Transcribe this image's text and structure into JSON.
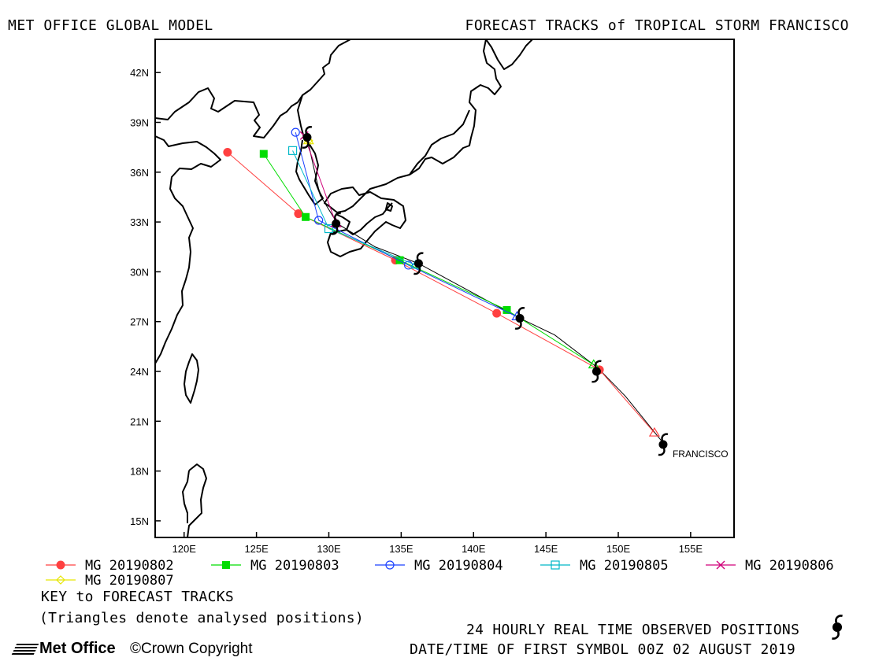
{
  "header": {
    "left_title": "MET OFFICE GLOBAL MODEL",
    "right_title": "FORECAST TRACKS of TROPICAL STORM FRANCISCO"
  },
  "chart_data": {
    "type": "line",
    "title": "FORECAST TRACKS of TROPICAL STORM FRANCISCO",
    "xlim": [
      118,
      158
    ],
    "ylim": [
      14,
      44
    ],
    "x_ticks": [
      120,
      125,
      130,
      135,
      140,
      145,
      150,
      155
    ],
    "x_tick_labels": [
      "120E",
      "125E",
      "130E",
      "135E",
      "140E",
      "145E",
      "150E",
      "155E"
    ],
    "y_ticks": [
      15,
      18,
      21,
      24,
      27,
      30,
      33,
      36,
      39,
      42
    ],
    "y_tick_labels": [
      "15N",
      "18N",
      "21N",
      "24N",
      "27N",
      "30N",
      "33N",
      "36N",
      "39N",
      "42N"
    ],
    "storm_label": "FRANCISCO",
    "observed_positions": [
      {
        "lon": 153.1,
        "lat": 19.6
      },
      {
        "lon": 148.5,
        "lat": 24.0
      },
      {
        "lon": 143.2,
        "lat": 27.2
      },
      {
        "lon": 136.2,
        "lat": 30.5
      },
      {
        "lon": 130.5,
        "lat": 32.9
      },
      {
        "lon": 128.5,
        "lat": 38.1
      }
    ],
    "observed_track": [
      {
        "lon": 153.0,
        "lat": 19.8
      },
      {
        "lon": 150.5,
        "lat": 22.5
      },
      {
        "lon": 148.6,
        "lat": 24.2
      },
      {
        "lon": 145.6,
        "lat": 26.2
      },
      {
        "lon": 143.2,
        "lat": 27.2
      },
      {
        "lon": 139.8,
        "lat": 28.8
      },
      {
        "lon": 136.2,
        "lat": 30.5
      },
      {
        "lon": 133.2,
        "lat": 31.5
      },
      {
        "lon": 130.6,
        "lat": 32.9
      },
      {
        "lon": 129.4,
        "lat": 34.6
      },
      {
        "lon": 128.9,
        "lat": 36.5
      },
      {
        "lon": 128.5,
        "lat": 38.1
      }
    ],
    "series": [
      {
        "name": "MG 20190802",
        "color": "#ff4040",
        "marker": "filled-circle",
        "points": [
          {
            "lon": 152.5,
            "lat": 20.3
          },
          {
            "lon": 148.7,
            "lat": 24.1
          },
          {
            "lon": 141.6,
            "lat": 27.5
          },
          {
            "lon": 134.6,
            "lat": 30.7
          },
          {
            "lon": 127.9,
            "lat": 33.5
          },
          {
            "lon": 123.0,
            "lat": 37.2
          }
        ]
      },
      {
        "name": "MG 20190803",
        "color": "#00dd00",
        "marker": "filled-square",
        "points": [
          {
            "lon": 148.3,
            "lat": 24.4
          },
          {
            "lon": 142.3,
            "lat": 27.7
          },
          {
            "lon": 134.9,
            "lat": 30.7
          },
          {
            "lon": 128.4,
            "lat": 33.3
          },
          {
            "lon": 125.5,
            "lat": 37.1
          }
        ]
      },
      {
        "name": "MG 20190804",
        "color": "#1a40ff",
        "marker": "open-circle",
        "points": [
          {
            "lon": 143.0,
            "lat": 27.3
          },
          {
            "lon": 135.5,
            "lat": 30.4
          },
          {
            "lon": 129.3,
            "lat": 33.1
          },
          {
            "lon": 127.7,
            "lat": 38.4
          }
        ]
      },
      {
        "name": "MG 20190805",
        "color": "#00b8c8",
        "marker": "open-square",
        "points": [
          {
            "lon": 136.0,
            "lat": 30.4
          },
          {
            "lon": 130.0,
            "lat": 32.6
          },
          {
            "lon": 127.5,
            "lat": 37.3
          }
        ]
      },
      {
        "name": "MG 20190806",
        "color": "#d0007a",
        "marker": "x",
        "points": [
          {
            "lon": 130.5,
            "lat": 32.9
          },
          {
            "lon": 128.3,
            "lat": 38.2
          }
        ]
      },
      {
        "name": "MG 20190807",
        "color": "#e6e600",
        "marker": "open-diamond",
        "points": [
          {
            "lon": 128.6,
            "lat": 37.9
          }
        ]
      }
    ]
  },
  "footer": {
    "key_title": "KEY to FORECAST TRACKS",
    "key_note": "(Triangles denote analysed positions)",
    "observed_note": "24 HOURLY REAL TIME OBSERVED POSITIONS",
    "first_symbol": "DATE/TIME OF FIRST SYMBOL 00Z 02 AUGUST 2019",
    "logo_text": "Met Office",
    "copyright": "©Crown Copyright"
  }
}
